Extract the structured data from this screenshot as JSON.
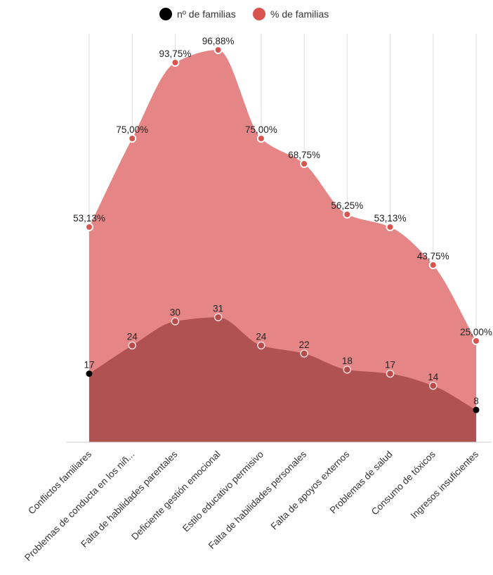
{
  "chart_data": {
    "type": "area",
    "title": "",
    "xlabel": "",
    "ylabel": "",
    "categories": [
      "Conflictos familiares",
      "Problemas de conducta en los niñ...",
      "Falta de habilidades parentales",
      "Deficiente gestión emocional",
      "Estilo educativo permisivo",
      "Falta de habilidades personales",
      "Falta de apoyos externos",
      "Problemas de salud",
      "Consumo de tóxicos",
      "Ingresos insuficientes"
    ],
    "series": [
      {
        "name": "nº de familias",
        "values": [
          17,
          24,
          30,
          31,
          24,
          22,
          18,
          17,
          14,
          8
        ],
        "labels": [
          "17",
          "24",
          "30",
          "31",
          "24",
          "22",
          "18",
          "17",
          "14",
          "8"
        ],
        "color": "#b05252",
        "marker_color": "#000000"
      },
      {
        "name": "% de familias",
        "values": [
          53.13,
          75.0,
          93.75,
          96.88,
          75.0,
          68.75,
          56.25,
          53.13,
          43.75,
          25.0
        ],
        "labels": [
          "53,13%",
          "75,00%",
          "93,75%",
          "96,88%",
          "75,00%",
          "68,75%",
          "56,25%",
          "53,13%",
          "43,75%",
          "25,00%"
        ],
        "color": "#e58585",
        "marker_color": "#d9534f"
      }
    ],
    "grid": true,
    "legend": "top-center"
  }
}
